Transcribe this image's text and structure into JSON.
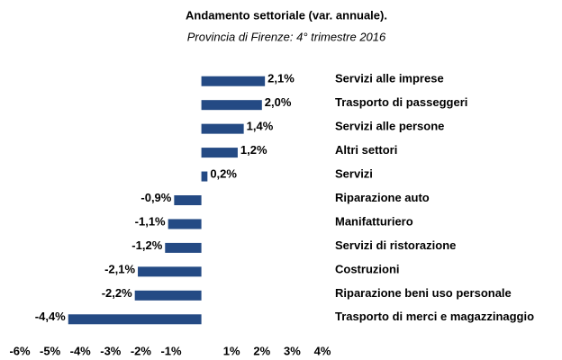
{
  "chart_data": {
    "type": "bar",
    "orientation": "horizontal",
    "title": "Andamento settoriale (var. annuale).",
    "subtitle": "Provincia di Firenze: 4° trimestre 2016",
    "categories": [
      "Servizi alle imprese",
      "Trasporto di passeggeri",
      "Servizi alle persone",
      "Altri settori",
      "Servizi",
      "Riparazione auto",
      "Manifatturiero",
      "Servizi di ristorazione",
      "Costruzioni",
      "Riparazione beni uso personale",
      "Trasporto di merci  e magazzinaggio"
    ],
    "values": [
      2.1,
      2.0,
      1.4,
      1.2,
      0.2,
      -0.9,
      -1.1,
      -1.2,
      -2.1,
      -2.2,
      -4.4
    ],
    "value_labels": [
      "2,1%",
      "2,0%",
      "1,4%",
      "1,2%",
      "0,2%",
      "-0,9%",
      "-1,1%",
      "-1,2%",
      "-2,1%",
      "-2,2%",
      "-4,4%"
    ],
    "color": "#244a84",
    "xlim": [
      -6,
      4
    ],
    "xticks": [
      {
        "value": -6,
        "label": "-6%"
      },
      {
        "value": -5,
        "label": "-5%"
      },
      {
        "value": -4,
        "label": "-4%"
      },
      {
        "value": -3,
        "label": "-3%"
      },
      {
        "value": -2,
        "label": "-2%"
      },
      {
        "value": -1,
        "label": "-1%"
      },
      {
        "value": 1,
        "label": "1%"
      },
      {
        "value": 2,
        "label": "2%"
      },
      {
        "value": 3,
        "label": "3%"
      },
      {
        "value": 4,
        "label": "4%"
      }
    ],
    "grid": false
  }
}
